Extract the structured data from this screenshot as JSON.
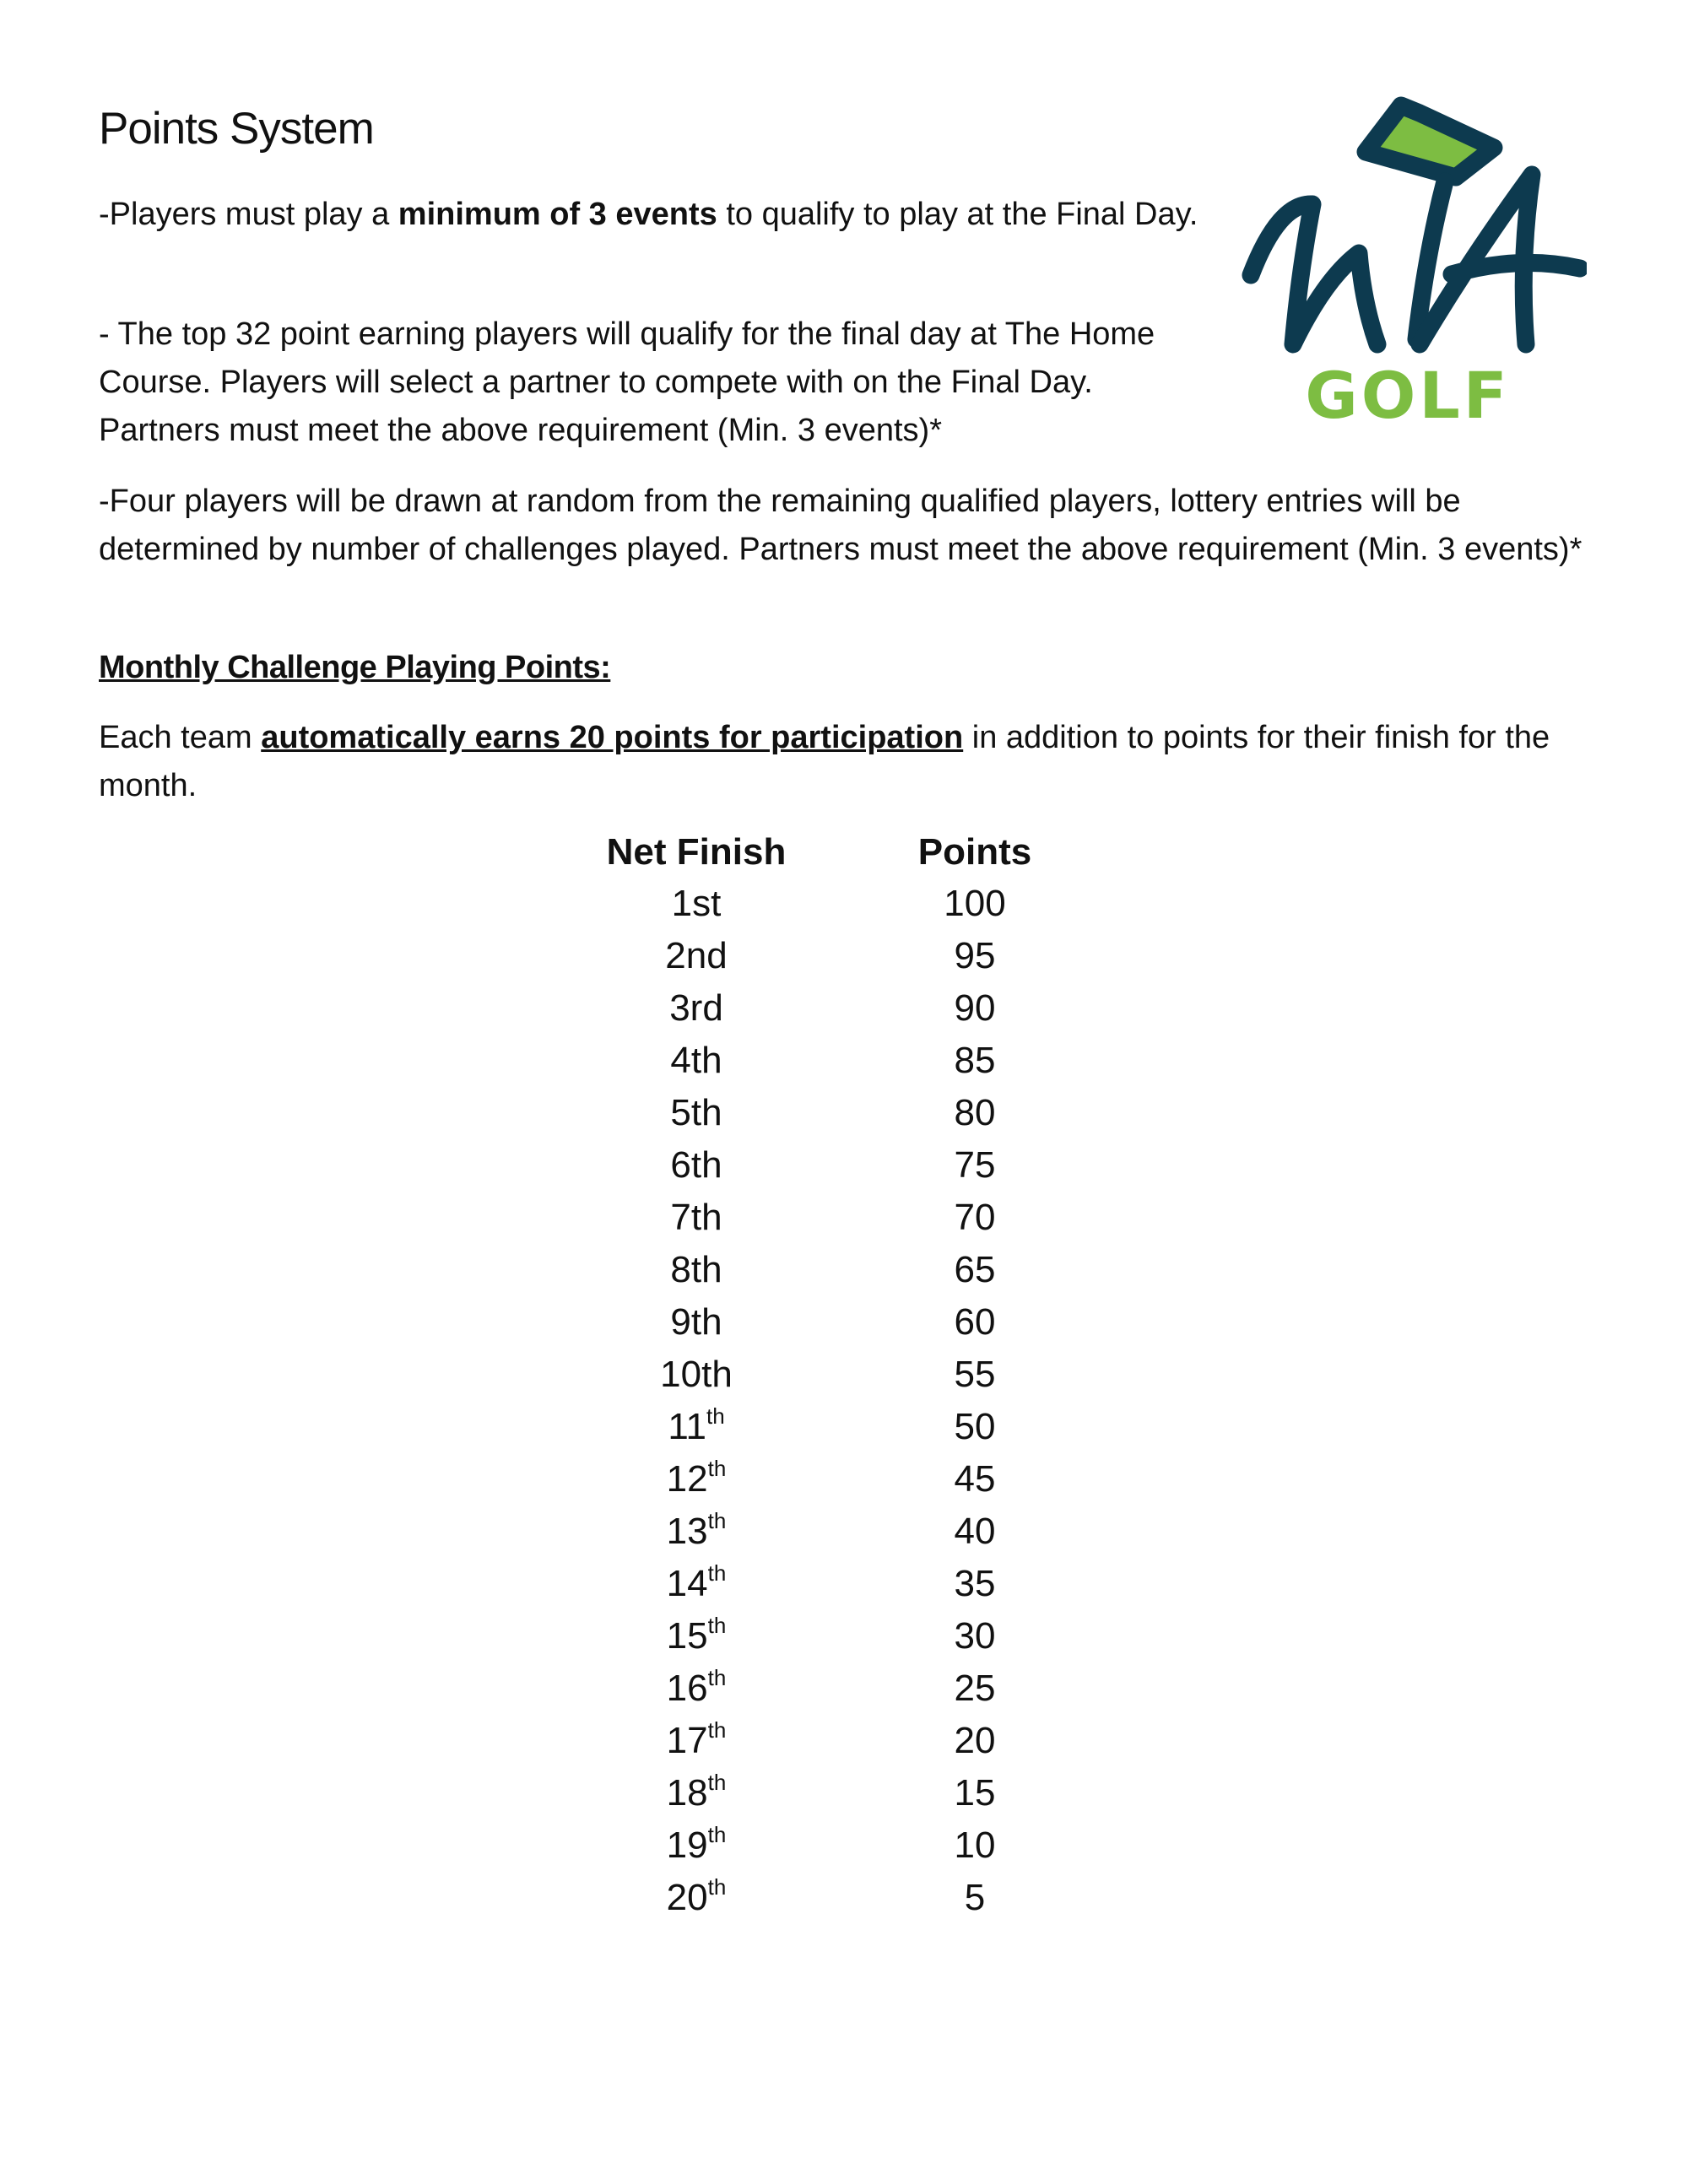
{
  "title": "Points System",
  "paragraphs": {
    "p1_pre": "-Players must play a ",
    "p1_bold": "minimum of 3 events",
    "p1_post": " to qualify to play at the Final Day.",
    "p2": "- The top 32 point earning players will qualify for the final day at The Home Course. Players will select a partner to compete with on the Final Day. Partners must meet the above requirement (Min. 3 events)*",
    "p3": "-Four players will be drawn at random from the remaining qualified players, lottery entries will be determined by number of challenges played. Partners must meet the above requirement (Min. 3 events)*",
    "heading": "Monthly Challenge Playing Points:",
    "p4_pre": "Each team ",
    "p4_bold": "automatically earns 20 points for participation",
    "p4_post": " in addition to points for their finish for the month."
  },
  "logo": {
    "text_script": "WA",
    "text_word": "GOLF",
    "colors": {
      "navy": "#0d3a4f",
      "green": "#7dbd42"
    }
  },
  "table": {
    "headers": [
      "Net Finish",
      "Points"
    ],
    "rows": [
      {
        "finish": "1st",
        "sup": "",
        "points": "100"
      },
      {
        "finish": "2nd",
        "sup": "",
        "points": "95"
      },
      {
        "finish": "3rd",
        "sup": "",
        "points": "90"
      },
      {
        "finish": "4th",
        "sup": "",
        "points": "85"
      },
      {
        "finish": "5th",
        "sup": "",
        "points": "80"
      },
      {
        "finish": "6th",
        "sup": "",
        "points": "75"
      },
      {
        "finish": "7th",
        "sup": "",
        "points": "70"
      },
      {
        "finish": "8th",
        "sup": "",
        "points": "65"
      },
      {
        "finish": "9th",
        "sup": "",
        "points": "60"
      },
      {
        "finish": "10th",
        "sup": "",
        "points": "55"
      },
      {
        "finish": "11",
        "sup": "th",
        "points": "50"
      },
      {
        "finish": "12",
        "sup": "th",
        "points": "45"
      },
      {
        "finish": "13",
        "sup": "th",
        "points": "40"
      },
      {
        "finish": "14",
        "sup": "th",
        "points": "35"
      },
      {
        "finish": "15",
        "sup": "th",
        "points": "30"
      },
      {
        "finish": "16",
        "sup": "th",
        "points": "25"
      },
      {
        "finish": "17",
        "sup": "th",
        "points": "20"
      },
      {
        "finish": "18",
        "sup": "th",
        "points": "15"
      },
      {
        "finish": "19",
        "sup": "th",
        "points": "10"
      },
      {
        "finish": "20",
        "sup": "th",
        "points": "5"
      }
    ]
  }
}
